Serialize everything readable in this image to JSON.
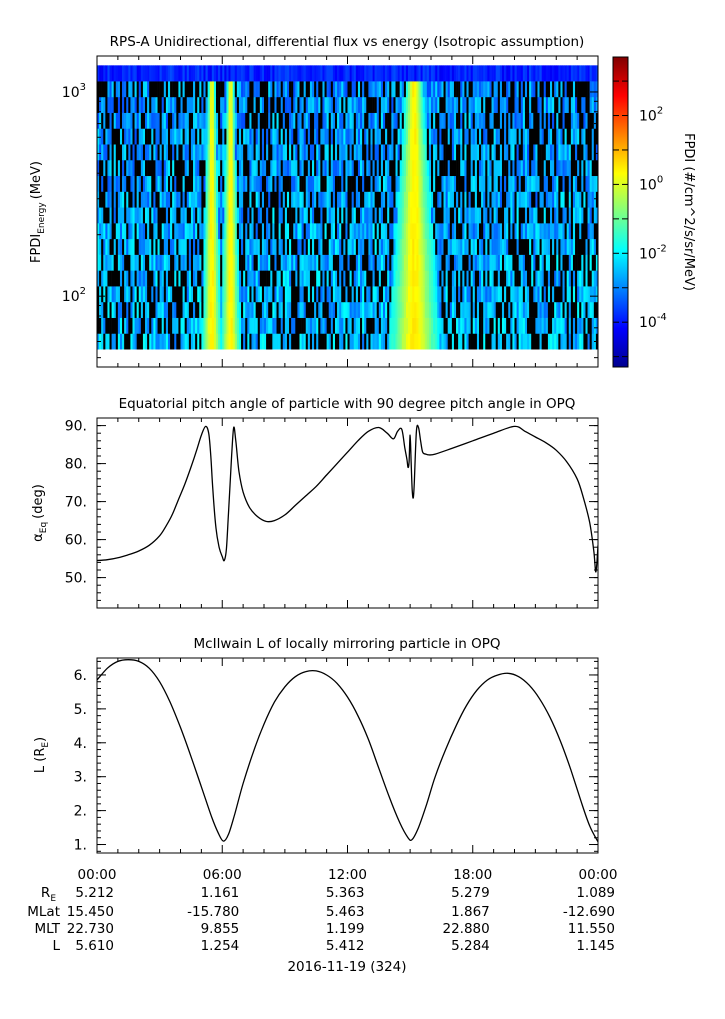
{
  "chart_data": [
    {
      "type": "heatmap",
      "title": "RPS-A Unidirectional, differential flux vs energy (Isotropic assumption)",
      "ylabel": "FPDI_Energy (MeV)",
      "ylabel_main": "FPDI",
      "ylabel_sub": "Energy",
      "ylabel_unit": "(MeV)",
      "yscale": "log",
      "ylim": [
        45,
        1500
      ],
      "y_ticks": [
        {
          "base": "10",
          "exp": "3",
          "value": 1000
        },
        {
          "base": "10",
          "exp": "2",
          "value": 100
        }
      ],
      "energy_range": [
        55,
        1350
      ],
      "xlim": [
        0,
        24
      ],
      "high_flux_hours": [
        5.5,
        6.4,
        15.2
      ],
      "colorbar": {
        "label": "FPDI (#/cm^2/s/sr/MeV)",
        "scale": "log",
        "range": [
          5e-06,
          5000
        ],
        "colormap": [
          "#00008f",
          "#0000ff",
          "#0080ff",
          "#00ffff",
          "#80ff80",
          "#ffff00",
          "#ff8000",
          "#ff0000",
          "#800000"
        ],
        "ticks": [
          {
            "base": "10",
            "exp": "2",
            "value": 100
          },
          {
            "base": "10",
            "exp": "0",
            "value": 1
          },
          {
            "base": "10",
            "exp": "-2",
            "value": 0.01
          },
          {
            "base": "10",
            "exp": "-4",
            "value": 0.0001
          }
        ]
      }
    },
    {
      "type": "line",
      "title": "Equatorial pitch angle of particle with 90 degree pitch angle in OPQ",
      "ylabel_main": "α",
      "ylabel_sub": "Eq",
      "ylabel_unit": "(deg)",
      "ylim": [
        42,
        92
      ],
      "xlim": [
        0,
        24
      ],
      "y_ticks": [
        "90.",
        "80.",
        "70.",
        "60.",
        "50."
      ],
      "y_tick_values": [
        90,
        80,
        70,
        60,
        50
      ],
      "series": [
        {
          "x": [
            0,
            0.5,
            1,
            1.5,
            2,
            2.5,
            3,
            3.3,
            3.6,
            3.9,
            4.2,
            4.5,
            4.8,
            5.0,
            5.2,
            5.35,
            5.45,
            5.55,
            5.7,
            5.85,
            6.0,
            6.1,
            6.2,
            6.3,
            6.45,
            6.55,
            6.65,
            6.8,
            7.0,
            7.3,
            7.7,
            8.1,
            8.5,
            9.0,
            9.5,
            10,
            10.5,
            11,
            11.5,
            12,
            12.5,
            13,
            13.5,
            13.9,
            14.2,
            14.4,
            14.6,
            14.75,
            14.85,
            14.9,
            14.95,
            15.0,
            15.05,
            15.1,
            15.15,
            15.2,
            15.3,
            15.4,
            15.5,
            15.6,
            15.75,
            15.9,
            16.2,
            17,
            18,
            19,
            20,
            20.5,
            21,
            21.5,
            22,
            22.5,
            23,
            23.3,
            23.6,
            23.8,
            23.9,
            24
          ],
          "y": [
            54.5,
            54.7,
            55.2,
            56.0,
            57.0,
            58.5,
            61.0,
            63.5,
            66.5,
            70.5,
            74.5,
            79.0,
            84.0,
            87.5,
            89.8,
            88.0,
            82.0,
            73.0,
            63.0,
            58.0,
            55.5,
            54.5,
            57.5,
            67.0,
            82.0,
            89.5,
            86.0,
            78.0,
            72.5,
            68.5,
            66.0,
            64.8,
            65.0,
            66.5,
            69.0,
            71.5,
            74.0,
            77.0,
            80.0,
            83.0,
            86.0,
            88.5,
            89.5,
            88.0,
            86.5,
            88.5,
            89.0,
            84.0,
            81.0,
            79.0,
            80.5,
            87.5,
            80.0,
            73.0,
            71.0,
            75.0,
            88.5,
            89.5,
            86.0,
            83.0,
            82.5,
            82.3,
            82.5,
            84.0,
            86.0,
            88.0,
            89.8,
            88.5,
            87.0,
            85.5,
            83.5,
            80.5,
            76.0,
            71.0,
            64.5,
            57.0,
            51.5,
            58.5
          ]
        }
      ]
    },
    {
      "type": "line",
      "title": "McIlwain L of locally mirroring particle in OPQ",
      "ylabel_main": "L (R",
      "ylabel_sub": "E",
      "ylabel_unit": ")",
      "ylim": [
        0.75,
        6.5
      ],
      "xlim": [
        0,
        24
      ],
      "y_ticks": [
        "6.",
        "5.",
        "4.",
        "3.",
        "2.",
        "1."
      ],
      "y_tick_values": [
        6,
        5,
        4,
        3,
        2,
        1
      ],
      "series": [
        {
          "x": [
            0,
            0.5,
            1,
            1.5,
            2,
            2.5,
            3,
            3.5,
            4,
            4.5,
            5,
            5.5,
            5.8,
            6.05,
            6.3,
            6.6,
            7,
            7.5,
            8,
            8.5,
            9,
            9.5,
            10,
            10.5,
            11,
            11.5,
            12,
            12.5,
            13,
            13.5,
            14,
            14.5,
            14.9,
            15.1,
            15.4,
            15.8,
            16.2,
            16.7,
            17.2,
            17.7,
            18.2,
            18.7,
            19.2,
            19.7,
            20.2,
            20.7,
            21.2,
            21.7,
            22.2,
            22.7,
            23.2,
            23.6,
            24
          ],
          "y": [
            5.85,
            6.2,
            6.4,
            6.45,
            6.4,
            6.2,
            5.8,
            5.2,
            4.45,
            3.6,
            2.7,
            1.8,
            1.35,
            1.1,
            1.3,
            1.9,
            2.8,
            3.75,
            4.55,
            5.2,
            5.65,
            5.95,
            6.1,
            6.12,
            6.0,
            5.75,
            5.35,
            4.8,
            4.1,
            3.25,
            2.4,
            1.65,
            1.2,
            1.15,
            1.5,
            2.2,
            3.0,
            3.8,
            4.5,
            5.1,
            5.55,
            5.85,
            6.0,
            6.05,
            5.95,
            5.7,
            5.3,
            4.75,
            4.05,
            3.2,
            2.25,
            1.55,
            1.08
          ]
        }
      ]
    }
  ],
  "x_axis": {
    "tick_labels": [
      "00:00",
      "06:00",
      "12:00",
      "18:00",
      "00:00"
    ],
    "tick_hours": [
      0,
      6,
      12,
      18,
      24
    ],
    "row_labels": {
      "re_main": "R",
      "re_sub": "E",
      "mlat": "MLat",
      "mlt": "MLT",
      "l": "L"
    },
    "rows": {
      "re": [
        "5.212",
        "1.161",
        "5.363",
        "5.279",
        "1.089"
      ],
      "mlat": [
        "15.450",
        "-15.780",
        "5.463",
        "1.867",
        "-12.690"
      ],
      "mlt": [
        "22.730",
        "9.855",
        "1.199",
        "22.880",
        "11.550"
      ],
      "l": [
        "5.610",
        "1.254",
        "5.412",
        "5.284",
        "1.145"
      ]
    },
    "date_label": "2016-11-19 (324)"
  }
}
